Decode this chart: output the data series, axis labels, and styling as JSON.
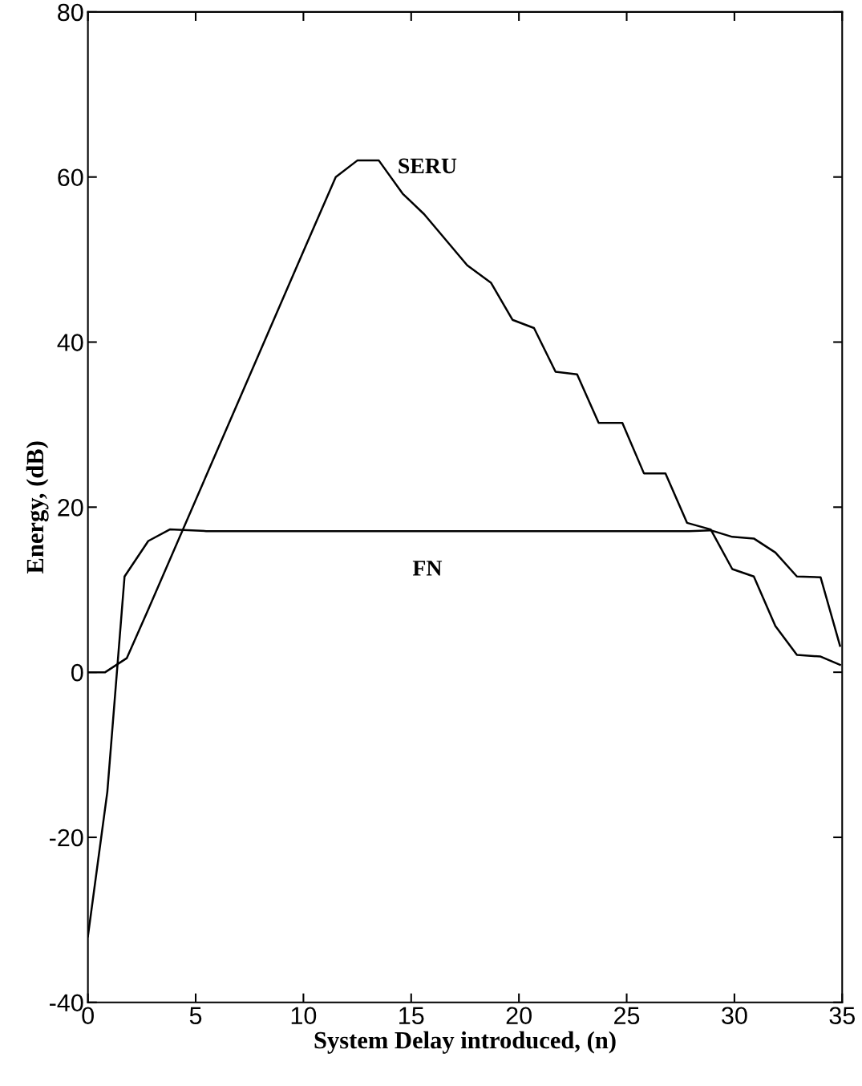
{
  "chart_data": {
    "type": "line",
    "xlabel": "System Delay introduced, (n)",
    "ylabel": "Energy, (dB)",
    "series": [
      {
        "name": "SERU",
        "color": "#000000",
        "x": [
          0,
          0.8,
          1.8,
          2.7,
          10,
          11.5,
          12.5,
          13.5,
          14.6,
          15.6,
          17.6,
          18.7,
          19.7,
          20.7,
          21.7,
          22.7,
          23.7,
          24.8,
          25.8,
          26.8,
          27.8,
          28.9,
          29.9,
          30.9,
          31.9,
          32.9,
          34.0,
          34.9
        ],
        "values": [
          0,
          0,
          1.7,
          7,
          51,
          60,
          62,
          62,
          58,
          55.5,
          49.3,
          47.2,
          42.7,
          41.7,
          36.4,
          36.1,
          30.2,
          30.2,
          24.1,
          24.1,
          18.1,
          17.3,
          12.5,
          11.6,
          5.6,
          2.1,
          1.9,
          0.9
        ]
      },
      {
        "name": "FN",
        "color": "#000000",
        "x": [
          0,
          0.9,
          1.7,
          2.8,
          3.8,
          5.5,
          27.9,
          28.9,
          29.9,
          30.9,
          31.9,
          32.9,
          34.0,
          34.9
        ],
        "values": [
          -32,
          -14.5,
          11.6,
          15.9,
          17.3,
          17.1,
          17.1,
          17.2,
          16.4,
          16.2,
          14.5,
          11.6,
          11.5,
          3.2
        ]
      }
    ],
    "xlim": [
      0,
      35
    ],
    "xticks": [
      0,
      5,
      10,
      15,
      20,
      25,
      30,
      35
    ],
    "ylim": [
      -40,
      80
    ],
    "yticks": [
      -40,
      -20,
      0,
      20,
      40,
      60,
      80
    ],
    "grid": false,
    "legend": false,
    "marker": "none",
    "line_style": "solid"
  }
}
